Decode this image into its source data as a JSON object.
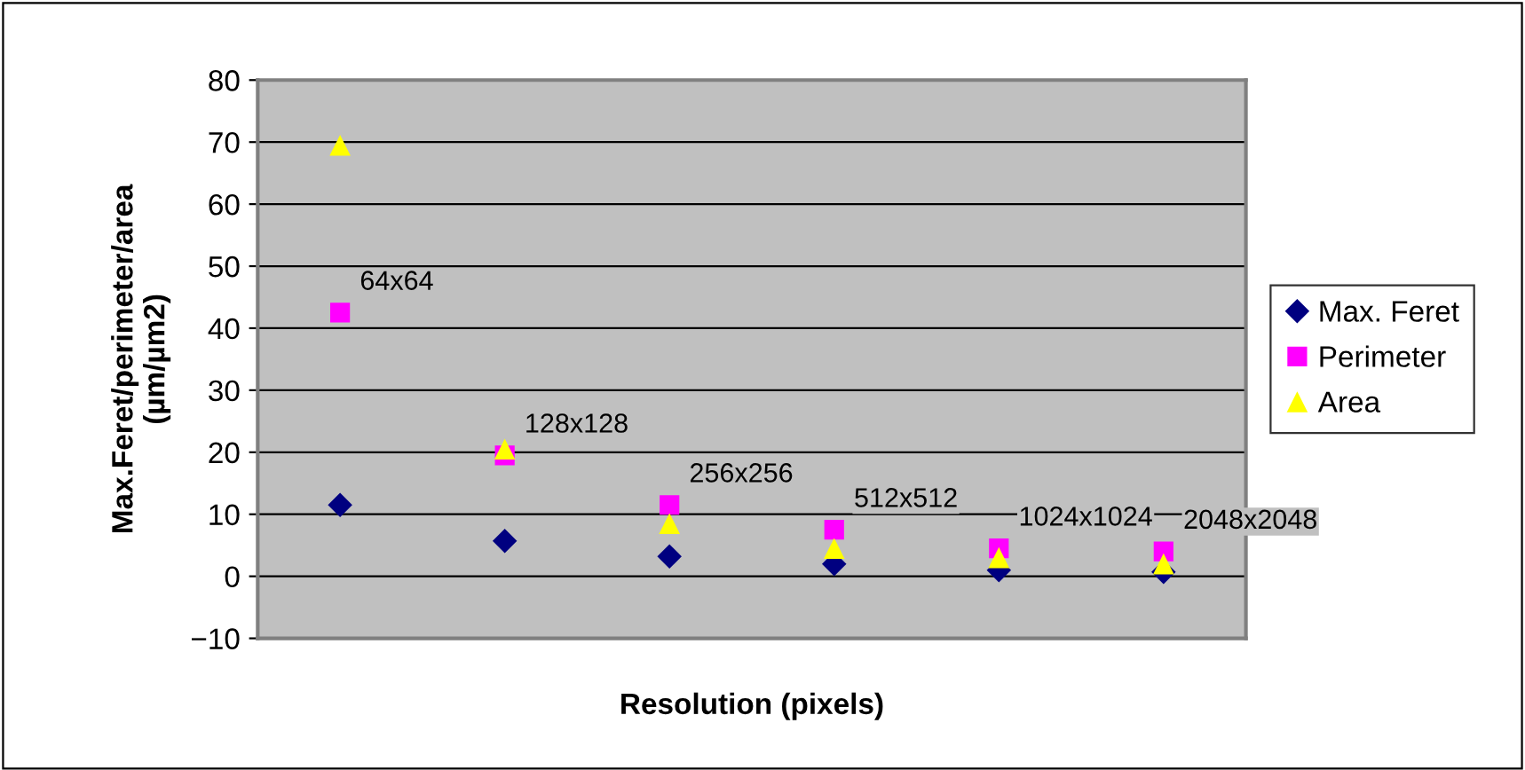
{
  "chart_data": {
    "type": "scatter",
    "xlabel": "Resolution (pixels)",
    "ylabel": "Max.Feret/perimeter/area\n(µm/µm2)",
    "categories": [
      null,
      null,
      null,
      null,
      null,
      null
    ],
    "series": [
      {
        "name": "Max. Feret",
        "color": "#000080",
        "marker": "diamond",
        "values": [
          11.5,
          5.7,
          3.2,
          2.0,
          1.0,
          0.7
        ]
      },
      {
        "name": "Perimeter",
        "color": "#ff00ff",
        "marker": "square",
        "values": [
          42.5,
          19.5,
          11.5,
          7.5,
          4.5,
          4.0
        ],
        "value_labels": [
          "64x64",
          "128x128",
          "256x256",
          "512x512",
          "1024x1024",
          "2048x2048"
        ]
      },
      {
        "name": "Area",
        "color": "#ffff00",
        "marker": "triangle",
        "values": [
          69.5,
          20.5,
          8.5,
          4.5,
          3.0,
          2.0
        ]
      }
    ],
    "ylim": [
      -10,
      80
    ],
    "yticks": [
      -10,
      0,
      10,
      20,
      30,
      40,
      50,
      60,
      70,
      80
    ],
    "grid": "y",
    "legend": "right",
    "tick_labels": "y"
  }
}
